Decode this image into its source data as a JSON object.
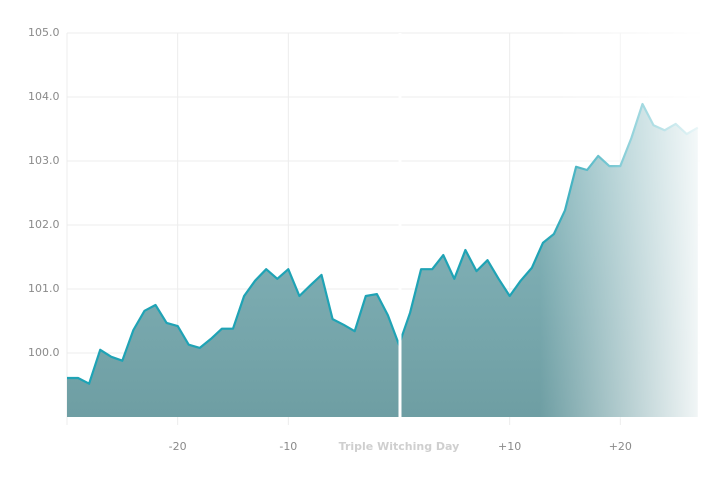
{
  "chart_data": {
    "type": "area",
    "x": [
      -30,
      -29,
      -28,
      -27,
      -26,
      -25,
      -24,
      -23,
      -22,
      -21,
      -20,
      -19,
      -18,
      -17,
      -16,
      -15,
      -14,
      -13,
      -12,
      -11,
      -10,
      -9,
      -8,
      -7,
      -6,
      -5,
      -4,
      -3,
      -2,
      -1,
      0,
      1,
      2,
      3,
      4,
      5,
      6,
      7,
      8,
      9,
      10,
      11,
      12,
      13,
      14,
      15,
      16,
      17,
      18,
      19,
      20,
      21,
      22,
      23,
      24,
      25,
      26,
      27
    ],
    "values": [
      99.61,
      99.61,
      99.52,
      100.05,
      99.94,
      99.88,
      100.36,
      100.66,
      100.75,
      100.47,
      100.42,
      100.13,
      100.08,
      100.22,
      100.38,
      100.38,
      100.89,
      101.13,
      101.31,
      101.16,
      101.31,
      100.89,
      101.06,
      101.22,
      100.53,
      100.44,
      100.34,
      100.89,
      100.92,
      100.59,
      100.13,
      100.63,
      101.31,
      101.31,
      101.53,
      101.16,
      101.61,
      101.28,
      101.45,
      101.16,
      100.89,
      101.13,
      101.33,
      101.72,
      101.86,
      102.23,
      102.91,
      102.86,
      103.08,
      102.92,
      102.92,
      103.36,
      103.89,
      103.56,
      103.48,
      103.58,
      103.42,
      103.52
    ],
    "color": "#1fa3b5",
    "xlim": [
      -30,
      27.2
    ],
    "ylim": [
      99,
      105
    ],
    "yticks": [
      {
        "value": 100,
        "label": "100.0"
      },
      {
        "value": 101,
        "label": "101.0"
      },
      {
        "value": 102,
        "label": "102.0"
      },
      {
        "value": 103,
        "label": "103.0"
      },
      {
        "value": 104,
        "label": "104.0"
      },
      {
        "value": 105,
        "label": "105.0"
      }
    ],
    "xticks": [
      -20,
      -10,
      {
        "value": 0,
        "label": "Triple Witching Day"
      },
      {
        "value": 10,
        "label": "+10"
      },
      {
        "value": 20,
        "label": "+20"
      }
    ],
    "grid": true
  }
}
